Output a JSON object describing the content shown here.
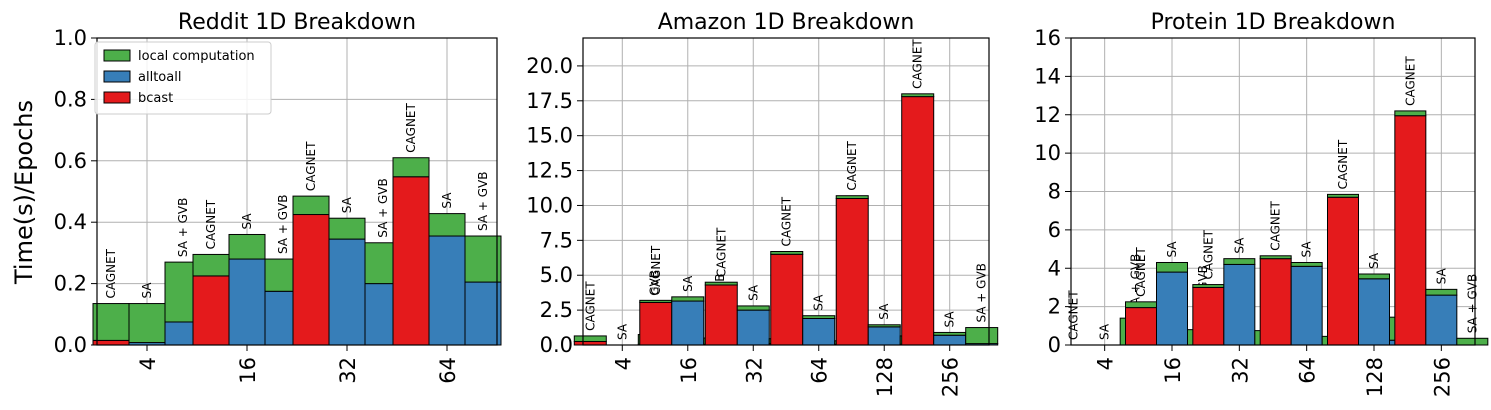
{
  "figure": {
    "ylabel": "Time(s)/Epochs",
    "legend": {
      "placement": "top-left of first panel",
      "entries": [
        {
          "label": "local computation",
          "color": "#4daf4a"
        },
        {
          "label": "alltoall",
          "color": "#377eb8"
        },
        {
          "label": "bcast",
          "color": "#e41a1c"
        }
      ]
    },
    "bar_labels": [
      "CAGNET",
      "SA",
      "SA + GVB"
    ],
    "colors": {
      "local": "#4daf4a",
      "alltoall": "#377eb8",
      "bcast": "#e41a1c",
      "grid": "#b0b0b0"
    }
  },
  "chart_data": [
    {
      "type": "bar",
      "stacked": true,
      "title": "Reddit 1D Breakdown",
      "ylim": [
        0,
        1.0
      ],
      "yticks": [
        "0.0",
        "0.2",
        "0.4",
        "0.6",
        "0.8",
        "1.0"
      ],
      "categories": [
        "4",
        "16",
        "32",
        "64"
      ],
      "grid": true,
      "groups": [
        {
          "category": "4",
          "bars": [
            {
              "label": "CAGNET",
              "bcast": 0.015,
              "alltoall": 0.0,
              "local": 0.12
            },
            {
              "label": "SA",
              "bcast": 0.0,
              "alltoall": 0.008,
              "local": 0.127
            },
            {
              "label": "SA + GVB",
              "bcast": 0.0,
              "alltoall": 0.075,
              "local": 0.195
            }
          ]
        },
        {
          "category": "16",
          "bars": [
            {
              "label": "CAGNET",
              "bcast": 0.225,
              "alltoall": 0.0,
              "local": 0.07
            },
            {
              "label": "SA",
              "bcast": 0.0,
              "alltoall": 0.28,
              "local": 0.08
            },
            {
              "label": "SA + GVB",
              "bcast": 0.0,
              "alltoall": 0.175,
              "local": 0.105
            }
          ]
        },
        {
          "category": "32",
          "bars": [
            {
              "label": "CAGNET",
              "bcast": 0.425,
              "alltoall": 0.0,
              "local": 0.06
            },
            {
              "label": "SA",
              "bcast": 0.0,
              "alltoall": 0.345,
              "local": 0.068
            },
            {
              "label": "SA + GVB",
              "bcast": 0.0,
              "alltoall": 0.2,
              "local": 0.133
            }
          ]
        },
        {
          "category": "64",
          "bars": [
            {
              "label": "CAGNET",
              "bcast": 0.548,
              "alltoall": 0.0,
              "local": 0.062
            },
            {
              "label": "SA",
              "bcast": 0.0,
              "alltoall": 0.355,
              "local": 0.073
            },
            {
              "label": "SA + GVB",
              "bcast": 0.0,
              "alltoall": 0.205,
              "local": 0.15
            }
          ]
        }
      ]
    },
    {
      "type": "bar",
      "stacked": true,
      "title": "Amazon 1D Breakdown",
      "ylim": [
        0,
        22
      ],
      "yticks": [
        "0.0",
        "2.5",
        "5.0",
        "7.5",
        "10.0",
        "12.5",
        "15.0",
        "17.5",
        "20.0"
      ],
      "categories": [
        "4",
        "16",
        "32",
        "64",
        "128",
        "256"
      ],
      "grid": true,
      "groups": [
        {
          "category": "4",
          "bars": [
            {
              "label": "CAGNET",
              "bcast": 0.25,
              "alltoall": 0.0,
              "local": 0.4
            },
            {
              "label": "SA",
              "bcast": 0.0,
              "alltoall": 0.0,
              "local": 0.0
            },
            {
              "label": "SA + GVB",
              "bcast": 0.0,
              "alltoall": 0.05,
              "local": 0.7
            }
          ]
        },
        {
          "category": "16",
          "bars": [
            {
              "label": "CAGNET",
              "bcast": 3.05,
              "alltoall": 0.0,
              "local": 0.15
            },
            {
              "label": "SA",
              "bcast": 0.0,
              "alltoall": 3.15,
              "local": 0.3
            },
            {
              "label": "SA + GVB",
              "bcast": 0.0,
              "alltoall": 0.05,
              "local": 0.45
            }
          ]
        },
        {
          "category": "32",
          "bars": [
            {
              "label": "CAGNET",
              "bcast": 4.3,
              "alltoall": 0.0,
              "local": 0.2
            },
            {
              "label": "SA",
              "bcast": 0.0,
              "alltoall": 2.5,
              "local": 0.3
            },
            {
              "label": "SA + GVB",
              "bcast": 0.0,
              "alltoall": 0.1,
              "local": 0.35
            }
          ]
        },
        {
          "category": "64",
          "bars": [
            {
              "label": "CAGNET",
              "bcast": 6.5,
              "alltoall": 0.0,
              "local": 0.2
            },
            {
              "label": "SA",
              "bcast": 0.0,
              "alltoall": 1.9,
              "local": 0.2
            },
            {
              "label": "SA + GVB",
              "bcast": 0.0,
              "alltoall": 0.05,
              "local": 0.25
            }
          ]
        },
        {
          "category": "128",
          "bars": [
            {
              "label": "CAGNET",
              "bcast": 10.5,
              "alltoall": 0.0,
              "local": 0.2
            },
            {
              "label": "SA",
              "bcast": 0.0,
              "alltoall": 1.3,
              "local": 0.15
            },
            {
              "label": "SA + GVB",
              "bcast": 0.0,
              "alltoall": 0.05,
              "local": 0.6
            }
          ]
        },
        {
          "category": "256",
          "bars": [
            {
              "label": "CAGNET",
              "bcast": 17.8,
              "alltoall": 0.0,
              "local": 0.2
            },
            {
              "label": "SA",
              "bcast": 0.0,
              "alltoall": 0.7,
              "local": 0.2
            },
            {
              "label": "SA + GVB",
              "bcast": 0.0,
              "alltoall": 0.1,
              "local": 1.15
            }
          ]
        }
      ]
    },
    {
      "type": "bar",
      "stacked": true,
      "title": "Protein 1D Breakdown",
      "ylim": [
        0,
        16
      ],
      "yticks": [
        "0",
        "2",
        "4",
        "6",
        "8",
        "10",
        "12",
        "14",
        "16"
      ],
      "categories": [
        "4",
        "16",
        "32",
        "64",
        "128",
        "256"
      ],
      "grid": true,
      "groups": [
        {
          "category": "4",
          "bars": [
            {
              "label": "CAGNET",
              "bcast": 0.0,
              "alltoall": 0.0,
              "local": 0.0
            },
            {
              "label": "SA",
              "bcast": 0.0,
              "alltoall": 0.0,
              "local": 0.0
            },
            {
              "label": "SA + GVB",
              "bcast": 0.0,
              "alltoall": 0.0,
              "local": 1.4
            }
          ]
        },
        {
          "category": "16",
          "bars": [
            {
              "label": "CAGNET",
              "bcast": 1.95,
              "alltoall": 0.0,
              "local": 0.3
            },
            {
              "label": "SA",
              "bcast": 0.0,
              "alltoall": 3.8,
              "local": 0.5
            },
            {
              "label": "SA + GVB",
              "bcast": 0.0,
              "alltoall": 0.0,
              "local": 0.8
            }
          ]
        },
        {
          "category": "32",
          "bars": [
            {
              "label": "CAGNET",
              "bcast": 3.0,
              "alltoall": 0.0,
              "local": 0.15
            },
            {
              "label": "SA",
              "bcast": 0.0,
              "alltoall": 4.2,
              "local": 0.3
            },
            {
              "label": "SA + GVB",
              "bcast": 0.0,
              "alltoall": 0.0,
              "local": 0.75
            }
          ]
        },
        {
          "category": "64",
          "bars": [
            {
              "label": "CAGNET",
              "bcast": 4.5,
              "alltoall": 0.0,
              "local": 0.15
            },
            {
              "label": "SA",
              "bcast": 0.0,
              "alltoall": 4.1,
              "local": 0.2
            },
            {
              "label": "SA + GVB",
              "bcast": 0.0,
              "alltoall": 0.0,
              "local": 0.45
            }
          ]
        },
        {
          "category": "128",
          "bars": [
            {
              "label": "CAGNET",
              "bcast": 7.7,
              "alltoall": 0.0,
              "local": 0.15
            },
            {
              "label": "SA",
              "bcast": 0.0,
              "alltoall": 3.45,
              "local": 0.25
            },
            {
              "label": "SA + GVB",
              "bcast": 0.0,
              "alltoall": 0.25,
              "local": 1.2
            }
          ]
        },
        {
          "category": "256",
          "bars": [
            {
              "label": "CAGNET",
              "bcast": 11.95,
              "alltoall": 0.0,
              "local": 0.25
            },
            {
              "label": "SA",
              "bcast": 0.0,
              "alltoall": 2.6,
              "local": 0.3
            },
            {
              "label": "SA + GVB",
              "bcast": 0.0,
              "alltoall": 0.0,
              "local": 0.35
            }
          ]
        }
      ]
    }
  ]
}
